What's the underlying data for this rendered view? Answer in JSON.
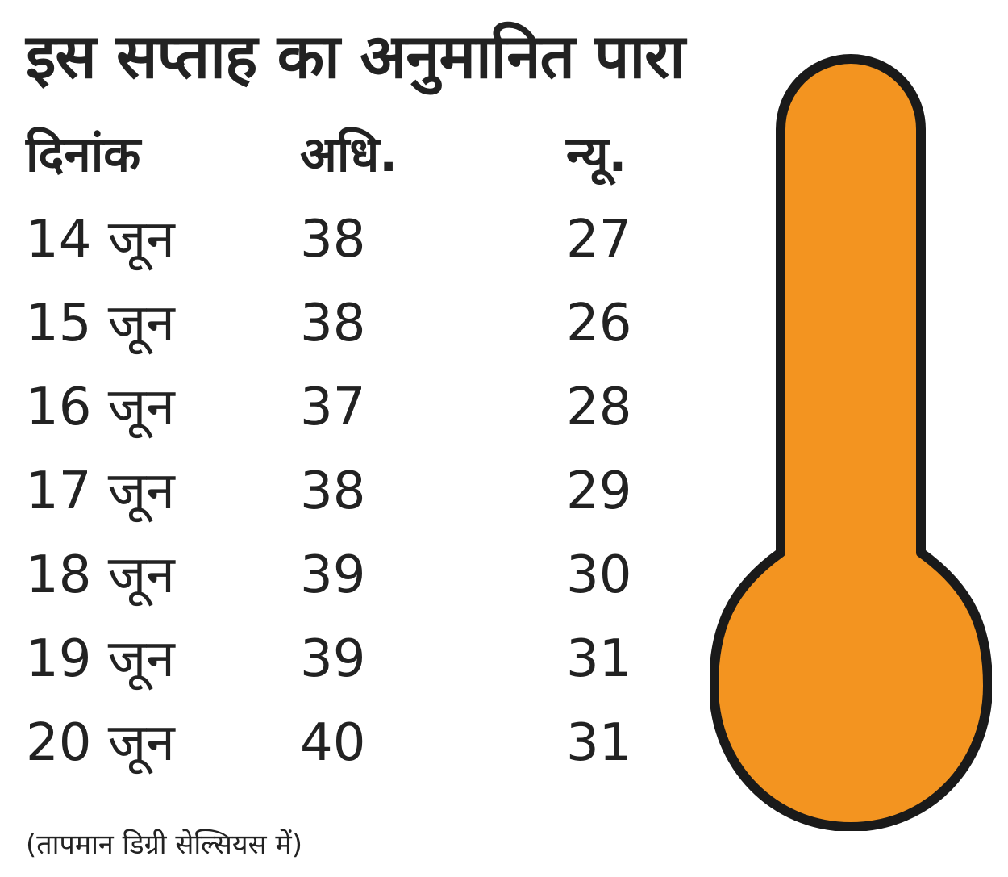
{
  "title": "इस सप्ताह का अनुमानित पारा",
  "columns": {
    "date": "दिनांक",
    "max": "अधि.",
    "min": "न्यू."
  },
  "note": "(तापमान डिग्री सेल्सियस में)",
  "colors": {
    "thermometer_fill": "#F39420",
    "thermometer_outline": "#1a1a1a"
  },
  "icons": [
    "thermometer-icon"
  ],
  "chart_data": {
    "type": "table",
    "title": "इस सप्ताह का अनुमानित पारा",
    "columns": [
      "दिनांक",
      "अधि.",
      "न्यू."
    ],
    "rows": [
      {
        "date": "14 जून",
        "max": 38,
        "min": 27
      },
      {
        "date": "15 जून",
        "max": 38,
        "min": 26
      },
      {
        "date": "16 जून",
        "max": 37,
        "min": 28
      },
      {
        "date": "17 जून",
        "max": 38,
        "min": 29
      },
      {
        "date": "18 जून",
        "max": 39,
        "min": 30
      },
      {
        "date": "19 जून",
        "max": 39,
        "min": 31
      },
      {
        "date": "20 जून",
        "max": 40,
        "min": 31
      }
    ]
  }
}
